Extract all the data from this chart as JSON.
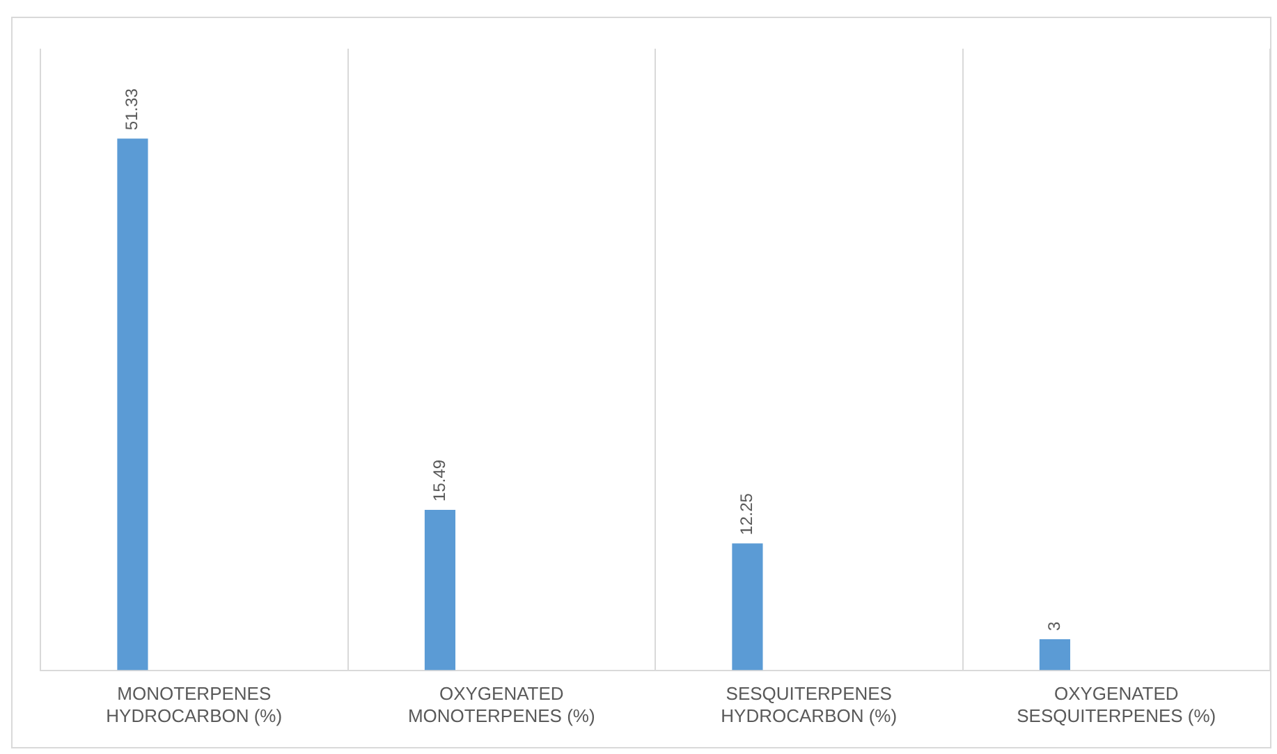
{
  "chart_data": {
    "type": "bar",
    "categories": [
      "MONOTERPENES HYDROCARBON (%)",
      "OXYGENATED MONOTERPENES (%)",
      "SESQUITERPENES HYDROCARBON (%)",
      "OXYGENATED SESQUITERPENES (%)"
    ],
    "values": [
      51.33,
      15.49,
      12.25,
      3
    ],
    "color": "#5b9bd5",
    "tick_labels": "x",
    "data_labels": true,
    "grid": "x",
    "legend": false
  }
}
